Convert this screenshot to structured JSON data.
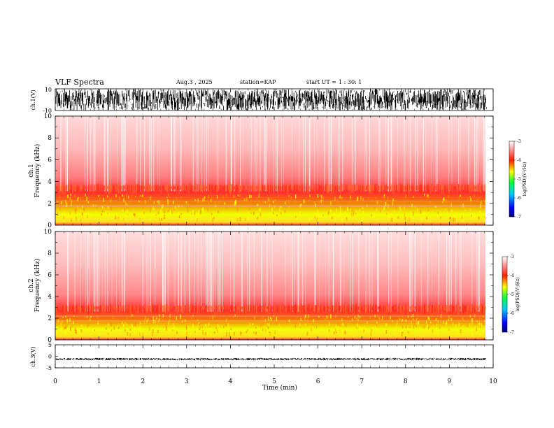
{
  "header": {
    "title": "VLF Spectra",
    "date": "Aug.3  , 2025",
    "station_label": "station=",
    "station": "KAP",
    "start_label": "start  UT  =",
    "start_time": "1 : 30: 1"
  },
  "chart_data": [
    {
      "type": "line",
      "id": "ch1-waveform",
      "ylabel": "ch.1(V)",
      "ylim": [
        -10,
        10
      ],
      "yticks": [
        10,
        -10
      ],
      "xlim": [
        0,
        9.85
      ],
      "description_values": "dense noise waveform spanning roughly -10 to 10 V"
    },
    {
      "type": "heatmap",
      "id": "ch1-spectrogram",
      "ylabel": "Frequency  (kHz)",
      "ylabel_channel": "ch.1",
      "ylim": [
        0,
        10
      ],
      "yticks": [
        "0",
        "2",
        "4",
        "6",
        "8",
        "10"
      ],
      "xlim": [
        0,
        9.85
      ],
      "band_top_khz": 3.5,
      "band_core_khz": [
        0.5,
        3.0
      ],
      "colorbar": {
        "label": "log(PSD)(V²/Hz)",
        "range": [
          -7,
          -3
        ],
        "ticks": [
          "-3",
          "-4",
          "-5",
          "-6",
          "-7"
        ]
      }
    },
    {
      "type": "heatmap",
      "id": "ch2-spectrogram",
      "ylabel": "Frequency  (kHz)",
      "ylabel_channel": "ch.2",
      "ylim": [
        0,
        10
      ],
      "yticks": [
        "0",
        "2",
        "4",
        "6",
        "8",
        "10"
      ],
      "xlim": [
        0,
        9.85
      ],
      "band_top_khz": 3.0,
      "band_core_khz": [
        0.5,
        2.5
      ],
      "colorbar": {
        "label": "log(PSD)(V²/Hz)",
        "range": [
          -7,
          -3
        ],
        "ticks": [
          "-3",
          "-4",
          "-5",
          "-6",
          "-7"
        ]
      }
    },
    {
      "type": "line",
      "id": "ch3-waveform",
      "ylabel": "ch.3(V)",
      "ylim": [
        -5,
        5
      ],
      "yticks": [
        "5",
        "0",
        "-5"
      ],
      "level_v": -1.2,
      "xlim": [
        0,
        9.85
      ]
    }
  ],
  "x_axis": {
    "label": "Time  (min)",
    "range": [
      0,
      10
    ],
    "ticks": [
      "0",
      "1",
      "2",
      "3",
      "4",
      "5",
      "6",
      "7",
      "8",
      "9",
      "10"
    ]
  }
}
